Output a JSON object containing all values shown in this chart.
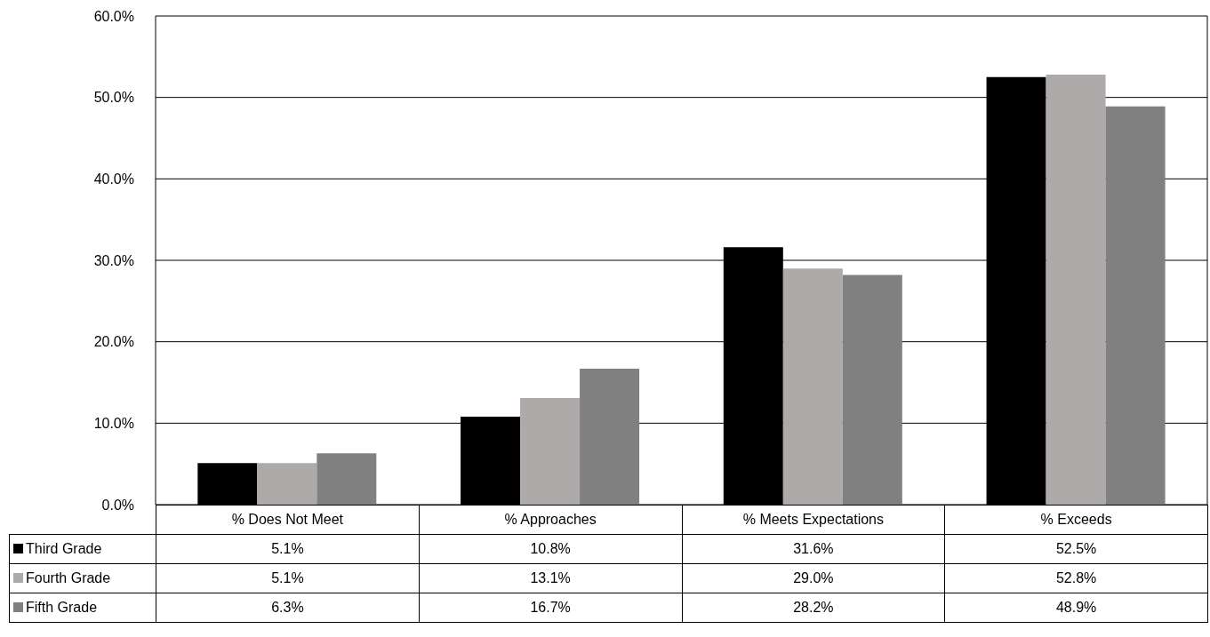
{
  "chart_data": {
    "type": "bar",
    "categories": [
      "% Does Not Meet",
      "% Approaches",
      "% Meets Expectations",
      "% Exceeds"
    ],
    "series": [
      {
        "name": "Third Grade",
        "color": "#000000",
        "values": [
          5.1,
          10.8,
          31.6,
          52.5
        ],
        "value_labels": [
          "5.1%",
          "10.8%",
          "31.6%",
          "52.5%"
        ]
      },
      {
        "name": "Fourth Grade",
        "color": "#aeaaaa",
        "values": [
          5.1,
          13.1,
          29.0,
          52.8
        ],
        "value_labels": [
          "5.1%",
          "13.1%",
          "29.0%",
          "52.8%"
        ]
      },
      {
        "name": "Fifth Grade",
        "color": "#808080",
        "values": [
          6.3,
          16.7,
          28.2,
          48.9
        ],
        "value_labels": [
          "6.3%",
          "16.7%",
          "28.2%",
          "48.9%"
        ]
      }
    ],
    "ylim": [
      0,
      60
    ],
    "yticks": [
      {
        "value": 0,
        "label": "0.0%"
      },
      {
        "value": 10,
        "label": "10.0%"
      },
      {
        "value": 20,
        "label": "20.0%"
      },
      {
        "value": 30,
        "label": "30.0%"
      },
      {
        "value": 40,
        "label": "40.0%"
      },
      {
        "value": 50,
        "label": "50.0%"
      },
      {
        "value": 60,
        "label": "60.0%"
      }
    ],
    "grid": "y",
    "legend": "bottom"
  }
}
